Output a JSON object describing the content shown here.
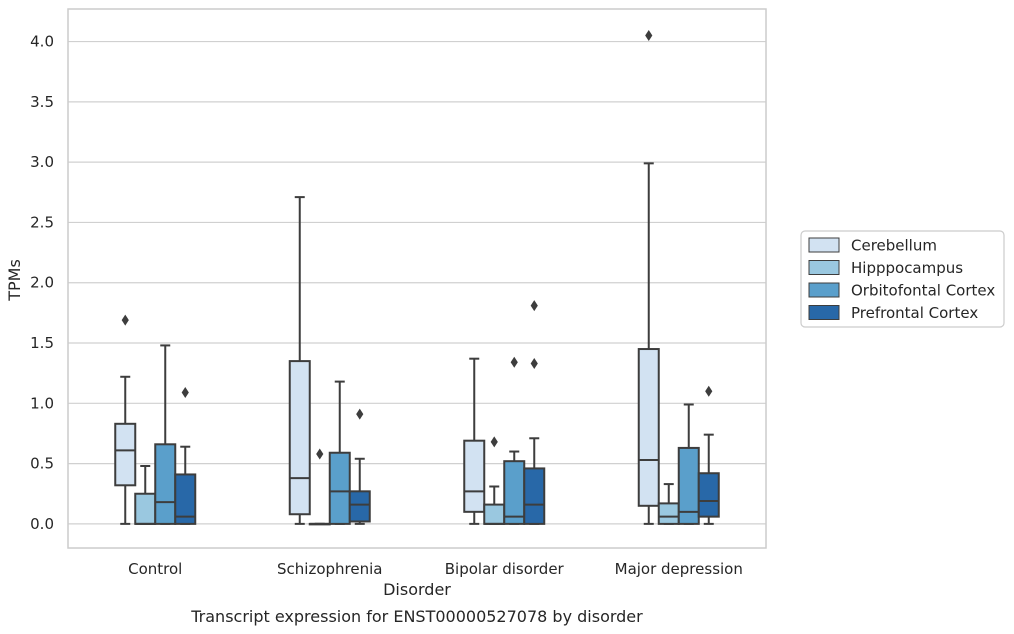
{
  "caption": "Transcript expression for ENST00000527078 by disorder",
  "chart_data": {
    "type": "box",
    "title": "",
    "xlabel": "Disorder",
    "ylabel": "TPMs",
    "ylim": [
      -0.2,
      4.27
    ],
    "yticks": [
      0.0,
      0.5,
      1.0,
      1.5,
      2.0,
      2.5,
      3.0,
      3.5,
      4.0
    ],
    "ytick_labels": [
      "0.0",
      "0.5",
      "1.0",
      "1.5",
      "2.0",
      "2.5",
      "3.0",
      "3.5",
      "4.0"
    ],
    "grid": "horizontal",
    "legend_position": "right",
    "categories": [
      "Control",
      "Schizophrenia",
      "Bipolar disorder",
      "Major depression"
    ],
    "series": [
      {
        "name": "Cerebellum",
        "color": "#d2e2f2",
        "boxes": [
          {
            "whislo": 0.0,
            "q1": 0.32,
            "med": 0.61,
            "q3": 0.83,
            "whishi": 1.22,
            "fliers": [
              1.69
            ]
          },
          {
            "whislo": 0.0,
            "q1": 0.08,
            "med": 0.38,
            "q3": 1.35,
            "whishi": 2.71,
            "fliers": []
          },
          {
            "whislo": 0.0,
            "q1": 0.1,
            "med": 0.27,
            "q3": 0.69,
            "whishi": 1.37,
            "fliers": []
          },
          {
            "whislo": 0.0,
            "q1": 0.15,
            "med": 0.53,
            "q3": 1.45,
            "whishi": 2.99,
            "fliers": [
              4.05
            ]
          }
        ]
      },
      {
        "name": "Hipppocampus",
        "color": "#9ac8e0",
        "boxes": [
          {
            "whislo": 0.0,
            "q1": 0.0,
            "med": 0.0,
            "q3": 0.25,
            "whishi": 0.48,
            "fliers": []
          },
          {
            "whislo": 0.0,
            "q1": 0.0,
            "med": 0.0,
            "q3": 0.0,
            "whishi": 0.0,
            "fliers": [
              0.58
            ]
          },
          {
            "whislo": 0.0,
            "q1": 0.0,
            "med": 0.0,
            "q3": 0.16,
            "whishi": 0.31,
            "fliers": [
              0.68
            ]
          },
          {
            "whislo": 0.0,
            "q1": 0.0,
            "med": 0.06,
            "q3": 0.17,
            "whishi": 0.33,
            "fliers": []
          }
        ]
      },
      {
        "name": "Orbitofontal Cortex",
        "color": "#5a9fcb",
        "boxes": [
          {
            "whislo": 0.0,
            "q1": 0.0,
            "med": 0.18,
            "q3": 0.66,
            "whishi": 1.48,
            "fliers": []
          },
          {
            "whislo": 0.0,
            "q1": 0.0,
            "med": 0.27,
            "q3": 0.59,
            "whishi": 1.18,
            "fliers": []
          },
          {
            "whislo": 0.0,
            "q1": 0.0,
            "med": 0.06,
            "q3": 0.52,
            "whishi": 0.6,
            "fliers": [
              1.34
            ]
          },
          {
            "whislo": 0.0,
            "q1": 0.0,
            "med": 0.1,
            "q3": 0.63,
            "whishi": 0.99,
            "fliers": []
          }
        ]
      },
      {
        "name": "Prefrontal Cortex",
        "color": "#2868a8",
        "boxes": [
          {
            "whislo": 0.0,
            "q1": 0.0,
            "med": 0.06,
            "q3": 0.41,
            "whishi": 0.64,
            "fliers": [
              1.09
            ]
          },
          {
            "whislo": 0.0,
            "q1": 0.02,
            "med": 0.16,
            "q3": 0.27,
            "whishi": 0.54,
            "fliers": [
              0.91
            ]
          },
          {
            "whislo": 0.0,
            "q1": 0.0,
            "med": 0.16,
            "q3": 0.46,
            "whishi": 0.71,
            "fliers": [
              1.33,
              1.81
            ]
          },
          {
            "whislo": 0.0,
            "q1": 0.06,
            "med": 0.19,
            "q3": 0.42,
            "whishi": 0.74,
            "fliers": [
              1.1
            ]
          }
        ]
      }
    ]
  }
}
